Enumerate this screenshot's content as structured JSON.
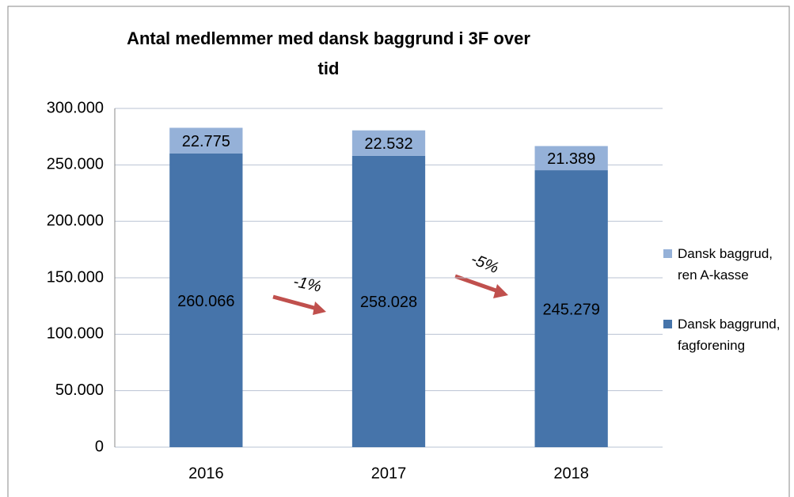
{
  "chart_data": {
    "type": "stacked_bar",
    "title": "Antal medlemmer med dansk baggrund i 3F over tid",
    "categories": [
      "2016",
      "2017",
      "2018"
    ],
    "series": [
      {
        "name": "Dansk baggrund, fagforening",
        "color": "#4674aa",
        "values": [
          260066,
          258028,
          245279
        ],
        "value_labels": [
          "260.066",
          "258.028",
          "245.279"
        ]
      },
      {
        "name": "Dansk baggrud, ren A-kasse",
        "color": "#95b1d8",
        "values": [
          22775,
          22532,
          21389
        ],
        "value_labels": [
          "22.775",
          "22.532",
          "21.389"
        ]
      }
    ],
    "ylim": [
      0,
      300000
    ],
    "yticks": [
      0,
      {
        "value": 50000,
        "label": "50.000"
      },
      {
        "value": 100000,
        "label": "100.000"
      },
      {
        "value": 150000,
        "label": "150.000"
      },
      {
        "value": 200000,
        "label": "200.000"
      },
      {
        "value": 250000,
        "label": "250.000"
      },
      {
        "value": 300000,
        "label": "300.000"
      }
    ],
    "grid": true,
    "legend": "right",
    "annotations": [
      "-1%",
      "-5%"
    ]
  }
}
